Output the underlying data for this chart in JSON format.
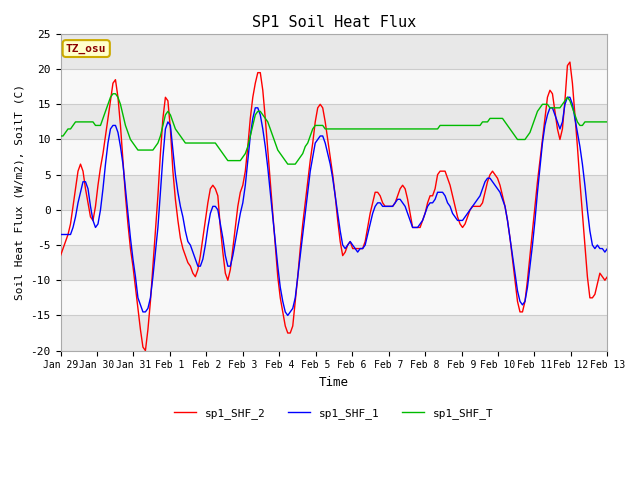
{
  "title": "SP1 Soil Heat Flux",
  "xlabel": "Time",
  "ylabel": "Soil Heat Flux (W/m2), SoilT (C)",
  "ylim": [
    -20,
    25
  ],
  "background_color": "#ffffff",
  "plot_bg_color": "#e8e8e8",
  "band_light": "#f0f0f0",
  "band_dark": "#d8d8d8",
  "grid_color": "#cccccc",
  "annotation_text": "TZ_osu",
  "annotation_bg": "#ffffcc",
  "annotation_border": "#ccaa00",
  "line_colors": {
    "sp1_SHF_2": "#ff0000",
    "sp1_SHF_1": "#0000ff",
    "sp1_SHF_T": "#00bb00"
  },
  "xtick_labels": [
    "Jan 29",
    "Jan 30",
    "Jan 31",
    "Feb 1",
    "Feb 2",
    "Feb 3",
    "Feb 4",
    "Feb 5",
    "Feb 6",
    "Feb 7",
    "Feb 8",
    "Feb 9",
    "Feb 10",
    "Feb 11",
    "Feb 12",
    "Feb 13"
  ],
  "ytick_labels": [
    -20,
    -15,
    -10,
    -5,
    0,
    5,
    10,
    15,
    20,
    25
  ],
  "sp1_SHF_2": [
    -6.5,
    -5.5,
    -4.5,
    -3.5,
    -2.0,
    0.5,
    3.0,
    5.5,
    6.5,
    5.5,
    3.0,
    1.0,
    -1.0,
    -1.5,
    0.5,
    3.5,
    6.0,
    8.0,
    10.5,
    13.0,
    15.5,
    18.0,
    18.5,
    16.0,
    12.0,
    7.0,
    2.0,
    -2.0,
    -5.5,
    -8.0,
    -11.0,
    -14.0,
    -17.0,
    -19.5,
    -20.0,
    -17.0,
    -13.0,
    -8.0,
    -3.0,
    2.0,
    8.0,
    13.0,
    16.0,
    15.5,
    11.5,
    5.5,
    1.5,
    -1.5,
    -4.0,
    -5.5,
    -6.5,
    -7.5,
    -8.0,
    -9.0,
    -9.5,
    -8.5,
    -6.5,
    -4.0,
    -1.5,
    1.0,
    3.0,
    3.5,
    3.0,
    2.0,
    -2.5,
    -6.0,
    -9.0,
    -10.0,
    -8.5,
    -5.5,
    -2.5,
    0.5,
    2.5,
    3.5,
    5.5,
    9.0,
    13.0,
    16.0,
    18.0,
    19.5,
    19.5,
    17.0,
    13.0,
    8.5,
    4.0,
    -0.5,
    -5.0,
    -9.5,
    -12.5,
    -14.5,
    -16.5,
    -17.5,
    -17.5,
    -16.5,
    -13.0,
    -9.5,
    -5.5,
    -2.0,
    1.0,
    4.0,
    7.0,
    9.5,
    12.5,
    14.5,
    15.0,
    14.5,
    12.5,
    10.0,
    7.5,
    5.0,
    2.0,
    -1.5,
    -4.5,
    -6.5,
    -6.0,
    -5.0,
    -4.5,
    -5.5,
    -5.5,
    -5.5,
    -5.5,
    -5.5,
    -4.5,
    -2.5,
    -0.5,
    1.0,
    2.5,
    2.5,
    2.0,
    1.0,
    0.5,
    0.5,
    0.5,
    0.5,
    1.0,
    2.0,
    3.0,
    3.5,
    3.0,
    1.5,
    -0.5,
    -2.5,
    -2.5,
    -2.5,
    -2.5,
    -1.5,
    -0.5,
    1.0,
    2.0,
    2.0,
    3.0,
    5.0,
    5.5,
    5.5,
    5.5,
    4.5,
    3.5,
    2.0,
    0.5,
    -1.0,
    -2.0,
    -2.5,
    -2.0,
    -1.0,
    0.0,
    0.5,
    0.5,
    0.5,
    0.5,
    1.0,
    2.5,
    4.0,
    5.0,
    5.5,
    5.0,
    4.5,
    3.5,
    2.0,
    0.5,
    -1.5,
    -4.0,
    -7.0,
    -10.0,
    -13.0,
    -14.5,
    -14.5,
    -13.0,
    -10.0,
    -6.5,
    -3.0,
    0.5,
    4.0,
    7.0,
    10.0,
    13.0,
    16.0,
    17.0,
    16.5,
    14.0,
    11.5,
    10.0,
    11.5,
    15.5,
    20.5,
    21.0,
    18.0,
    13.5,
    9.0,
    4.0,
    -0.5,
    -5.0,
    -9.5,
    -12.5,
    -12.5,
    -12.0,
    -10.5,
    -9.0,
    -9.5,
    -10.0,
    -9.5
  ],
  "sp1_SHF_1": [
    -3.5,
    -3.5,
    -3.5,
    -3.5,
    -3.5,
    -2.5,
    -1.0,
    1.0,
    2.5,
    4.0,
    4.0,
    3.0,
    0.5,
    -1.5,
    -2.5,
    -2.0,
    0.0,
    3.0,
    6.5,
    9.5,
    11.5,
    12.0,
    12.0,
    11.0,
    9.0,
    6.5,
    3.0,
    -0.5,
    -4.0,
    -7.0,
    -9.5,
    -12.5,
    -13.5,
    -14.5,
    -14.5,
    -14.0,
    -12.5,
    -9.5,
    -6.0,
    -2.5,
    2.5,
    7.5,
    11.5,
    12.5,
    12.0,
    8.5,
    5.0,
    2.5,
    0.5,
    -1.0,
    -3.0,
    -4.5,
    -5.0,
    -6.0,
    -7.0,
    -8.0,
    -8.0,
    -7.0,
    -5.0,
    -2.5,
    -0.5,
    0.5,
    0.5,
    0.0,
    -2.0,
    -4.0,
    -6.5,
    -8.0,
    -8.0,
    -6.5,
    -4.5,
    -2.5,
    -0.5,
    1.0,
    3.5,
    7.0,
    10.5,
    13.0,
    14.5,
    14.5,
    13.5,
    11.5,
    9.0,
    6.0,
    2.5,
    -1.0,
    -4.5,
    -8.0,
    -11.0,
    -13.0,
    -14.5,
    -15.0,
    -14.5,
    -14.0,
    -12.5,
    -9.5,
    -6.5,
    -3.5,
    -0.5,
    2.5,
    5.5,
    7.5,
    9.5,
    10.0,
    10.5,
    10.5,
    9.5,
    8.0,
    6.5,
    4.5,
    2.0,
    -0.5,
    -3.0,
    -5.0,
    -5.5,
    -5.0,
    -4.5,
    -5.0,
    -5.5,
    -6.0,
    -5.5,
    -5.5,
    -5.0,
    -3.5,
    -2.0,
    -0.5,
    0.5,
    1.0,
    1.0,
    0.5,
    0.5,
    0.5,
    0.5,
    0.5,
    1.0,
    1.5,
    1.5,
    1.0,
    0.5,
    -0.5,
    -1.5,
    -2.5,
    -2.5,
    -2.5,
    -2.0,
    -1.5,
    -0.5,
    0.5,
    1.0,
    1.0,
    1.5,
    2.5,
    2.5,
    2.5,
    2.0,
    1.0,
    0.5,
    -0.5,
    -1.0,
    -1.5,
    -1.5,
    -1.5,
    -1.0,
    -0.5,
    0.0,
    0.5,
    1.0,
    1.5,
    2.0,
    3.0,
    4.0,
    4.5,
    4.5,
    4.0,
    3.5,
    3.0,
    2.5,
    1.5,
    0.5,
    -1.5,
    -4.0,
    -6.5,
    -9.0,
    -11.5,
    -13.0,
    -13.5,
    -13.0,
    -11.0,
    -8.0,
    -5.0,
    -1.5,
    2.5,
    6.0,
    9.5,
    12.0,
    13.5,
    14.5,
    14.5,
    13.5,
    12.5,
    11.5,
    12.5,
    15.0,
    16.0,
    16.0,
    15.0,
    13.0,
    11.0,
    9.0,
    6.5,
    3.5,
    0.0,
    -3.0,
    -5.0,
    -5.5,
    -5.0,
    -5.5,
    -5.5,
    -6.0,
    -5.5
  ],
  "sp1_SHF_T": [
    10.5,
    10.5,
    11.0,
    11.5,
    11.5,
    12.0,
    12.5,
    12.5,
    12.5,
    12.5,
    12.5,
    12.5,
    12.5,
    12.5,
    12.0,
    12.0,
    12.0,
    13.0,
    14.0,
    15.0,
    16.0,
    16.5,
    16.5,
    16.0,
    15.0,
    13.5,
    12.0,
    11.0,
    10.0,
    9.5,
    9.0,
    8.5,
    8.5,
    8.5,
    8.5,
    8.5,
    8.5,
    8.5,
    9.0,
    9.5,
    10.5,
    12.0,
    13.5,
    14.0,
    13.5,
    12.5,
    11.5,
    11.0,
    10.5,
    10.0,
    9.5,
    9.5,
    9.5,
    9.5,
    9.5,
    9.5,
    9.5,
    9.5,
    9.5,
    9.5,
    9.5,
    9.5,
    9.5,
    9.0,
    8.5,
    8.0,
    7.5,
    7.0,
    7.0,
    7.0,
    7.0,
    7.0,
    7.0,
    7.5,
    8.0,
    9.0,
    10.5,
    12.0,
    13.5,
    14.0,
    14.0,
    13.5,
    13.0,
    12.5,
    11.5,
    10.5,
    9.5,
    8.5,
    8.0,
    7.5,
    7.0,
    6.5,
    6.5,
    6.5,
    6.5,
    7.0,
    7.5,
    8.0,
    9.0,
    9.5,
    10.5,
    11.5,
    12.0,
    12.0,
    12.0,
    12.0,
    11.5,
    11.5,
    11.5,
    11.5,
    11.5,
    11.5,
    11.5,
    11.5,
    11.5,
    11.5,
    11.5,
    11.5,
    11.5,
    11.5,
    11.5,
    11.5,
    11.5,
    11.5,
    11.5,
    11.5,
    11.5,
    11.5,
    11.5,
    11.5,
    11.5,
    11.5,
    11.5,
    11.5,
    11.5,
    11.5,
    11.5,
    11.5,
    11.5,
    11.5,
    11.5,
    11.5,
    11.5,
    11.5,
    11.5,
    11.5,
    11.5,
    11.5,
    11.5,
    11.5,
    11.5,
    11.5,
    12.0,
    12.0,
    12.0,
    12.0,
    12.0,
    12.0,
    12.0,
    12.0,
    12.0,
    12.0,
    12.0,
    12.0,
    12.0,
    12.0,
    12.0,
    12.0,
    12.0,
    12.5,
    12.5,
    12.5,
    13.0,
    13.0,
    13.0,
    13.0,
    13.0,
    13.0,
    12.5,
    12.0,
    11.5,
    11.0,
    10.5,
    10.0,
    10.0,
    10.0,
    10.0,
    10.5,
    11.0,
    12.0,
    13.0,
    14.0,
    14.5,
    15.0,
    15.0,
    15.0,
    14.5,
    14.5,
    14.5,
    14.5,
    14.5,
    15.0,
    15.5,
    16.0,
    15.5,
    14.5,
    13.5,
    12.5,
    12.0,
    12.0,
    12.5,
    12.5,
    12.5,
    12.5,
    12.5,
    12.5,
    12.5,
    12.5,
    12.5,
    12.5
  ]
}
